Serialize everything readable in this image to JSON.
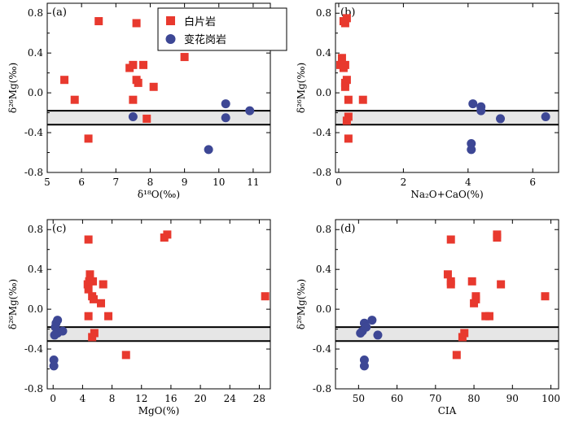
{
  "colors": {
    "white_mica_rock": "#e8392e",
    "granite": "#3d4795",
    "band": "#e6e6e6"
  },
  "legend": {
    "white_mica_rock": "白片岩",
    "granite": "变花岗岩"
  },
  "chart_data": [
    {
      "type": "scatter",
      "panel_label": "(a)",
      "xlabel": "δ¹⁸O(‰)",
      "ylabel": "δ²⁶Mg(‰)",
      "xlim": [
        5,
        11.5
      ],
      "ylim": [
        -0.8,
        0.9
      ],
      "xticks": [
        5,
        6,
        7,
        8,
        9,
        10,
        11
      ],
      "yticks": [
        -0.8,
        -0.4,
        0.0,
        0.4,
        0.8
      ],
      "hlines": [
        -0.18,
        -0.32
      ],
      "legend_position": "top-center",
      "series": [
        {
          "name": "白片岩",
          "key": "white_mica_rock",
          "marker": "square",
          "points": [
            [
              6.5,
              0.72
            ],
            [
              7.6,
              0.7
            ],
            [
              9.0,
              0.36
            ],
            [
              7.5,
              0.28
            ],
            [
              7.8,
              0.28
            ],
            [
              7.4,
              0.25
            ],
            [
              7.6,
              0.13
            ],
            [
              5.5,
              0.13
            ],
            [
              7.65,
              0.1
            ],
            [
              8.1,
              0.06
            ],
            [
              5.8,
              -0.07
            ],
            [
              7.5,
              -0.07
            ],
            [
              7.9,
              -0.26
            ],
            [
              6.2,
              -0.46
            ]
          ]
        },
        {
          "name": "变花岗岩",
          "key": "granite",
          "marker": "circle",
          "points": [
            [
              10.9,
              -0.18
            ],
            [
              10.2,
              -0.11
            ],
            [
              7.5,
              -0.24
            ],
            [
              10.2,
              -0.25
            ],
            [
              9.7,
              -0.57
            ]
          ]
        }
      ]
    },
    {
      "type": "scatter",
      "panel_label": "(b)",
      "xlabel": "Na₂O+CaO(%)",
      "ylabel": "δ²⁶Mg(‰)",
      "xlim": [
        -0.1,
        6.8
      ],
      "ylim": [
        -0.8,
        0.9
      ],
      "xticks": [
        0,
        2,
        4,
        6
      ],
      "yticks": [
        -0.8,
        -0.4,
        0.0,
        0.4,
        0.8
      ],
      "hlines": [
        -0.18,
        -0.32
      ],
      "series": [
        {
          "name": "白片岩",
          "key": "white_mica_rock",
          "marker": "square",
          "points": [
            [
              0.25,
              0.75
            ],
            [
              0.15,
              0.72
            ],
            [
              0.2,
              0.7
            ],
            [
              0.1,
              0.35
            ],
            [
              0.05,
              0.28
            ],
            [
              0.2,
              0.28
            ],
            [
              0.15,
              0.25
            ],
            [
              0.25,
              0.13
            ],
            [
              0.2,
              0.1
            ],
            [
              0.2,
              0.06
            ],
            [
              0.3,
              -0.07
            ],
            [
              0.75,
              -0.07
            ],
            [
              0.3,
              -0.24
            ],
            [
              0.25,
              -0.28
            ],
            [
              0.3,
              -0.46
            ]
          ]
        },
        {
          "name": "变花岗岩",
          "key": "granite",
          "marker": "circle",
          "points": [
            [
              4.15,
              -0.11
            ],
            [
              4.4,
              -0.14
            ],
            [
              4.4,
              -0.18
            ],
            [
              6.4,
              -0.24
            ],
            [
              5.0,
              -0.26
            ],
            [
              4.1,
              -0.51
            ],
            [
              4.1,
              -0.57
            ]
          ]
        }
      ]
    },
    {
      "type": "scatter",
      "panel_label": "(c)",
      "xlabel": "MgO(%)",
      "ylabel": "δ²⁶Mg(‰)",
      "xlim": [
        -0.8,
        29.5
      ],
      "ylim": [
        -0.8,
        0.9
      ],
      "xticks": [
        0,
        4,
        8,
        12,
        16,
        20,
        24,
        28
      ],
      "yticks": [
        -0.8,
        -0.4,
        0.0,
        0.4,
        0.8
      ],
      "hlines": [
        -0.18,
        -0.32
      ],
      "series": [
        {
          "name": "白片岩",
          "key": "white_mica_rock",
          "marker": "square",
          "points": [
            [
              15.5,
              0.75
            ],
            [
              15.1,
              0.72
            ],
            [
              4.8,
              0.7
            ],
            [
              5.0,
              0.35
            ],
            [
              4.9,
              0.28
            ],
            [
              5.4,
              0.28
            ],
            [
              4.7,
              0.25
            ],
            [
              6.8,
              0.25
            ],
            [
              4.8,
              0.2
            ],
            [
              5.3,
              0.13
            ],
            [
              28.8,
              0.13
            ],
            [
              5.5,
              0.1
            ],
            [
              6.5,
              0.06
            ],
            [
              4.8,
              -0.07
            ],
            [
              7.5,
              -0.07
            ],
            [
              5.6,
              -0.24
            ],
            [
              5.3,
              -0.28
            ],
            [
              9.9,
              -0.46
            ]
          ]
        },
        {
          "name": "变花岗岩",
          "key": "granite",
          "marker": "circle",
          "points": [
            [
              0.6,
              -0.11
            ],
            [
              0.4,
              -0.14
            ],
            [
              0.3,
              -0.18
            ],
            [
              1.3,
              -0.22
            ],
            [
              0.6,
              -0.24
            ],
            [
              0.2,
              -0.26
            ],
            [
              0.1,
              -0.51
            ],
            [
              0.1,
              -0.57
            ]
          ]
        }
      ]
    },
    {
      "type": "scatter",
      "panel_label": "(d)",
      "xlabel": "CIA",
      "ylabel": "δ²⁶Mg(‰)",
      "xlim": [
        44,
        102
      ],
      "ylim": [
        -0.8,
        0.9
      ],
      "xticks": [
        50,
        60,
        70,
        80,
        90,
        100
      ],
      "yticks": [
        -0.8,
        -0.4,
        0.0,
        0.4,
        0.8
      ],
      "hlines": [
        -0.18,
        -0.32
      ],
      "series": [
        {
          "name": "白片岩",
          "key": "white_mica_rock",
          "marker": "square",
          "points": [
            [
              86.0,
              0.75
            ],
            [
              86.0,
              0.72
            ],
            [
              74.0,
              0.7
            ],
            [
              79.5,
              0.28
            ],
            [
              73.2,
              0.35
            ],
            [
              74.0,
              0.28
            ],
            [
              74.0,
              0.25
            ],
            [
              87.0,
              0.25
            ],
            [
              80.5,
              0.13
            ],
            [
              98.5,
              0.13
            ],
            [
              80.5,
              0.1
            ],
            [
              80.0,
              0.06
            ],
            [
              84.0,
              -0.07
            ],
            [
              83.0,
              -0.07
            ],
            [
              77.5,
              -0.24
            ],
            [
              77.0,
              -0.28
            ],
            [
              75.5,
              -0.46
            ]
          ]
        },
        {
          "name": "变花岗岩",
          "key": "granite",
          "marker": "circle",
          "points": [
            [
              53.5,
              -0.11
            ],
            [
              51.5,
              -0.14
            ],
            [
              52.0,
              -0.18
            ],
            [
              51.0,
              -0.22
            ],
            [
              50.5,
              -0.24
            ],
            [
              55.0,
              -0.26
            ],
            [
              51.5,
              -0.51
            ],
            [
              51.5,
              -0.57
            ]
          ]
        }
      ]
    }
  ]
}
